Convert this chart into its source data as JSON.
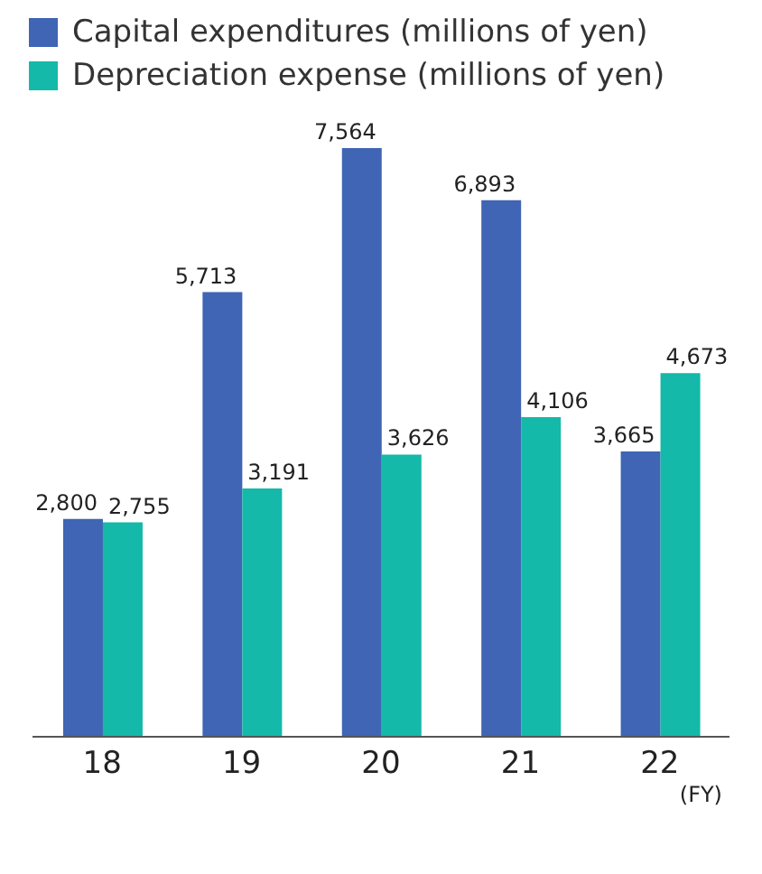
{
  "chart_data": {
    "type": "bar",
    "categories": [
      "18",
      "19",
      "20",
      "21",
      "22"
    ],
    "xlabel": "(FY)",
    "series": [
      {
        "name": "Capital expenditures (millions of yen)",
        "color": "#3f65b4",
        "values": [
          2800,
          5713,
          7564,
          6893,
          3665
        ],
        "value_labels": [
          "2,800",
          "5,713",
          "7,564",
          "6,893",
          "3,665"
        ]
      },
      {
        "name": "Depreciation expense (millions of yen)",
        "color": "#14b9a9",
        "values": [
          2755,
          3191,
          3626,
          4106,
          4673
        ],
        "value_labels": [
          "2,755",
          "3,191",
          "3,626",
          "4,106",
          "4,673"
        ]
      }
    ],
    "legend": "top left",
    "grid": false
  }
}
